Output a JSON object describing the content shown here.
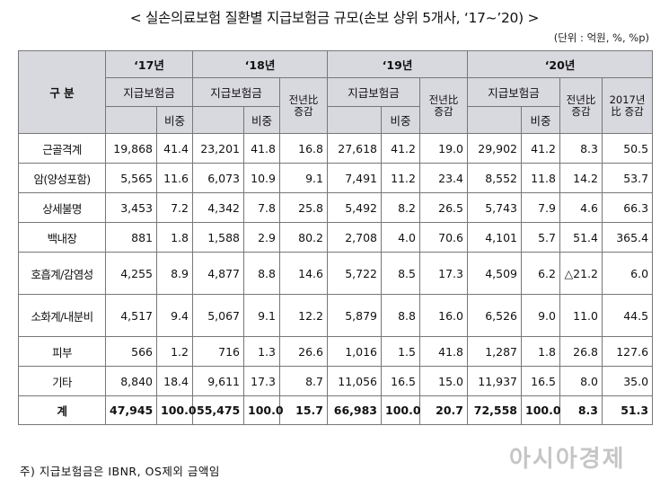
{
  "title": "< 실손의료보험 질환별 지급보험금 규모(손보 상위 5개사, ‘17~’20) >",
  "unit": "(단위 : 억원, %, %p)",
  "headers": {
    "category": "구 분",
    "years": [
      "‘17년",
      "‘18년",
      "‘19년",
      "‘20년"
    ],
    "payment": "지급보험금",
    "share": "비중",
    "yoy": "전년比 증감",
    "vs2017": "2017년比 증감"
  },
  "rows": [
    {
      "cat": "근골격계",
      "v": [
        "19,868",
        "41.4",
        "23,201",
        "41.8",
        "16.8",
        "27,618",
        "41.2",
        "19.0",
        "29,902",
        "41.2",
        "8.3",
        "50.5"
      ]
    },
    {
      "cat": "암(양성포함)",
      "v": [
        "5,565",
        "11.6",
        "6,073",
        "10.9",
        "9.1",
        "7,491",
        "11.2",
        "23.4",
        "8,552",
        "11.8",
        "14.2",
        "53.7"
      ]
    },
    {
      "cat": "상세불명",
      "v": [
        "3,453",
        "7.2",
        "4,342",
        "7.8",
        "25.8",
        "5,492",
        "8.2",
        "26.5",
        "5,743",
        "7.9",
        "4.6",
        "66.3"
      ]
    },
    {
      "cat": "백내장",
      "v": [
        "881",
        "1.8",
        "1,588",
        "2.9",
        "80.2",
        "2,708",
        "4.0",
        "70.6",
        "4,101",
        "5.7",
        "51.4",
        "365.4"
      ]
    },
    {
      "cat": "호흡계/감염성",
      "v": [
        "4,255",
        "8.9",
        "4,877",
        "8.8",
        "14.6",
        "5,722",
        "8.5",
        "17.3",
        "4,509",
        "6.2",
        "△21.2",
        "6.0"
      ]
    },
    {
      "cat": "소화계/내분비",
      "v": [
        "4,517",
        "9.4",
        "5,067",
        "9.1",
        "12.2",
        "5,879",
        "8.8",
        "16.0",
        "6,526",
        "9.0",
        "11.0",
        "44.5"
      ]
    },
    {
      "cat": "피부",
      "v": [
        "566",
        "1.2",
        "716",
        "1.3",
        "26.6",
        "1,016",
        "1.5",
        "41.8",
        "1,287",
        "1.8",
        "26.8",
        "127.6"
      ]
    },
    {
      "cat": "기타",
      "v": [
        "8,840",
        "18.4",
        "9,611",
        "17.3",
        "8.7",
        "11,056",
        "16.5",
        "15.0",
        "11,937",
        "16.5",
        "8.0",
        "35.0"
      ]
    }
  ],
  "total": {
    "cat": "계",
    "v": [
      "47,945",
      "100.0",
      "55,475",
      "100.0",
      "15.7",
      "66,983",
      "100.0",
      "20.7",
      "72,558",
      "100.0",
      "8.3",
      "51.3"
    ]
  },
  "note": "주) 지급보험금은 IBNR, OS제외 금액임",
  "watermark": "아시아경제"
}
